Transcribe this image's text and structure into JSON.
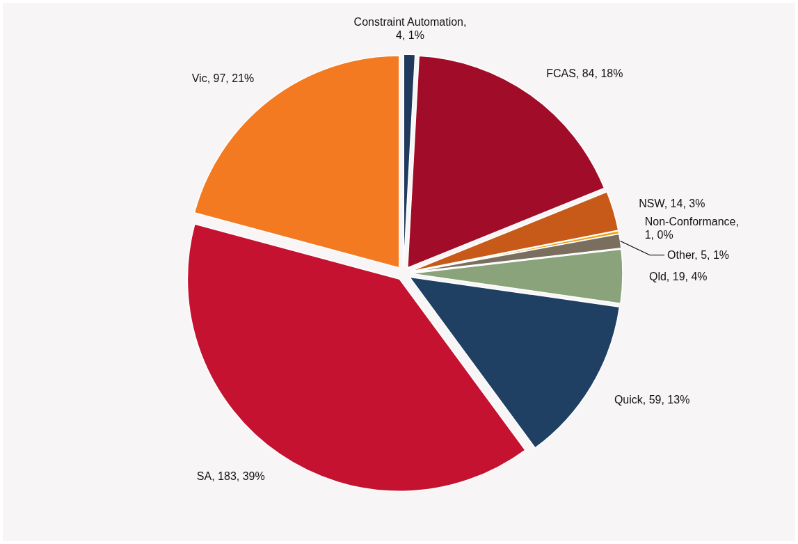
{
  "chart_data": {
    "type": "pie",
    "categories": [
      "Constraint Automation",
      "FCAS",
      "NSW",
      "Non-Conformance",
      "Other",
      "Qld",
      "Quick",
      "SA",
      "Vic"
    ],
    "values": [
      4,
      84,
      14,
      1,
      5,
      19,
      59,
      183,
      97
    ],
    "colors": [
      "#1f3a5c",
      "#a10d28",
      "#c85a19",
      "#e8a317",
      "#7a6f5e",
      "#8aa37b",
      "#1f4063",
      "#c41230",
      "#f37a21"
    ],
    "value_labels": [
      ", 4, 1%",
      ", 84, 18%",
      ", 14, 3%",
      ", 1, 0%",
      ", 5, 1%",
      ", 19, 4%",
      ", 59, 13%",
      ", 183, 39%",
      ", 97, 21%"
    ]
  }
}
